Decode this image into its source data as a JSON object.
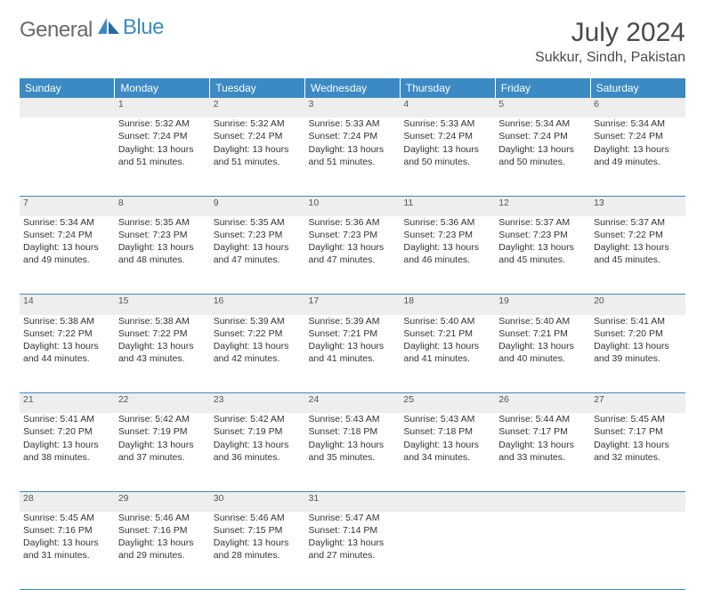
{
  "brand": {
    "part1": "General",
    "part2": "Blue"
  },
  "title": "July 2024",
  "location": "Sukkur, Sindh, Pakistan",
  "colors": {
    "header_bg": "#3b8ac4",
    "header_text": "#ffffff",
    "daynum_bg": "#eeeeee",
    "border": "#3b8ac4",
    "body_text": "#333333"
  },
  "day_headers": [
    "Sunday",
    "Monday",
    "Tuesday",
    "Wednesday",
    "Thursday",
    "Friday",
    "Saturday"
  ],
  "weeks": [
    {
      "nums": [
        "",
        "1",
        "2",
        "3",
        "4",
        "5",
        "6"
      ],
      "cells": [
        null,
        {
          "sunrise": "Sunrise: 5:32 AM",
          "sunset": "Sunset: 7:24 PM",
          "day1": "Daylight: 13 hours",
          "day2": "and 51 minutes."
        },
        {
          "sunrise": "Sunrise: 5:32 AM",
          "sunset": "Sunset: 7:24 PM",
          "day1": "Daylight: 13 hours",
          "day2": "and 51 minutes."
        },
        {
          "sunrise": "Sunrise: 5:33 AM",
          "sunset": "Sunset: 7:24 PM",
          "day1": "Daylight: 13 hours",
          "day2": "and 51 minutes."
        },
        {
          "sunrise": "Sunrise: 5:33 AM",
          "sunset": "Sunset: 7:24 PM",
          "day1": "Daylight: 13 hours",
          "day2": "and 50 minutes."
        },
        {
          "sunrise": "Sunrise: 5:34 AM",
          "sunset": "Sunset: 7:24 PM",
          "day1": "Daylight: 13 hours",
          "day2": "and 50 minutes."
        },
        {
          "sunrise": "Sunrise: 5:34 AM",
          "sunset": "Sunset: 7:24 PM",
          "day1": "Daylight: 13 hours",
          "day2": "and 49 minutes."
        }
      ]
    },
    {
      "nums": [
        "7",
        "8",
        "9",
        "10",
        "11",
        "12",
        "13"
      ],
      "cells": [
        {
          "sunrise": "Sunrise: 5:34 AM",
          "sunset": "Sunset: 7:24 PM",
          "day1": "Daylight: 13 hours",
          "day2": "and 49 minutes."
        },
        {
          "sunrise": "Sunrise: 5:35 AM",
          "sunset": "Sunset: 7:23 PM",
          "day1": "Daylight: 13 hours",
          "day2": "and 48 minutes."
        },
        {
          "sunrise": "Sunrise: 5:35 AM",
          "sunset": "Sunset: 7:23 PM",
          "day1": "Daylight: 13 hours",
          "day2": "and 47 minutes."
        },
        {
          "sunrise": "Sunrise: 5:36 AM",
          "sunset": "Sunset: 7:23 PM",
          "day1": "Daylight: 13 hours",
          "day2": "and 47 minutes."
        },
        {
          "sunrise": "Sunrise: 5:36 AM",
          "sunset": "Sunset: 7:23 PM",
          "day1": "Daylight: 13 hours",
          "day2": "and 46 minutes."
        },
        {
          "sunrise": "Sunrise: 5:37 AM",
          "sunset": "Sunset: 7:23 PM",
          "day1": "Daylight: 13 hours",
          "day2": "and 45 minutes."
        },
        {
          "sunrise": "Sunrise: 5:37 AM",
          "sunset": "Sunset: 7:22 PM",
          "day1": "Daylight: 13 hours",
          "day2": "and 45 minutes."
        }
      ]
    },
    {
      "nums": [
        "14",
        "15",
        "16",
        "17",
        "18",
        "19",
        "20"
      ],
      "cells": [
        {
          "sunrise": "Sunrise: 5:38 AM",
          "sunset": "Sunset: 7:22 PM",
          "day1": "Daylight: 13 hours",
          "day2": "and 44 minutes."
        },
        {
          "sunrise": "Sunrise: 5:38 AM",
          "sunset": "Sunset: 7:22 PM",
          "day1": "Daylight: 13 hours",
          "day2": "and 43 minutes."
        },
        {
          "sunrise": "Sunrise: 5:39 AM",
          "sunset": "Sunset: 7:22 PM",
          "day1": "Daylight: 13 hours",
          "day2": "and 42 minutes."
        },
        {
          "sunrise": "Sunrise: 5:39 AM",
          "sunset": "Sunset: 7:21 PM",
          "day1": "Daylight: 13 hours",
          "day2": "and 41 minutes."
        },
        {
          "sunrise": "Sunrise: 5:40 AM",
          "sunset": "Sunset: 7:21 PM",
          "day1": "Daylight: 13 hours",
          "day2": "and 41 minutes."
        },
        {
          "sunrise": "Sunrise: 5:40 AM",
          "sunset": "Sunset: 7:21 PM",
          "day1": "Daylight: 13 hours",
          "day2": "and 40 minutes."
        },
        {
          "sunrise": "Sunrise: 5:41 AM",
          "sunset": "Sunset: 7:20 PM",
          "day1": "Daylight: 13 hours",
          "day2": "and 39 minutes."
        }
      ]
    },
    {
      "nums": [
        "21",
        "22",
        "23",
        "24",
        "25",
        "26",
        "27"
      ],
      "cells": [
        {
          "sunrise": "Sunrise: 5:41 AM",
          "sunset": "Sunset: 7:20 PM",
          "day1": "Daylight: 13 hours",
          "day2": "and 38 minutes."
        },
        {
          "sunrise": "Sunrise: 5:42 AM",
          "sunset": "Sunset: 7:19 PM",
          "day1": "Daylight: 13 hours",
          "day2": "and 37 minutes."
        },
        {
          "sunrise": "Sunrise: 5:42 AM",
          "sunset": "Sunset: 7:19 PM",
          "day1": "Daylight: 13 hours",
          "day2": "and 36 minutes."
        },
        {
          "sunrise": "Sunrise: 5:43 AM",
          "sunset": "Sunset: 7:18 PM",
          "day1": "Daylight: 13 hours",
          "day2": "and 35 minutes."
        },
        {
          "sunrise": "Sunrise: 5:43 AM",
          "sunset": "Sunset: 7:18 PM",
          "day1": "Daylight: 13 hours",
          "day2": "and 34 minutes."
        },
        {
          "sunrise": "Sunrise: 5:44 AM",
          "sunset": "Sunset: 7:17 PM",
          "day1": "Daylight: 13 hours",
          "day2": "and 33 minutes."
        },
        {
          "sunrise": "Sunrise: 5:45 AM",
          "sunset": "Sunset: 7:17 PM",
          "day1": "Daylight: 13 hours",
          "day2": "and 32 minutes."
        }
      ]
    },
    {
      "nums": [
        "28",
        "29",
        "30",
        "31",
        "",
        "",
        ""
      ],
      "cells": [
        {
          "sunrise": "Sunrise: 5:45 AM",
          "sunset": "Sunset: 7:16 PM",
          "day1": "Daylight: 13 hours",
          "day2": "and 31 minutes."
        },
        {
          "sunrise": "Sunrise: 5:46 AM",
          "sunset": "Sunset: 7:16 PM",
          "day1": "Daylight: 13 hours",
          "day2": "and 29 minutes."
        },
        {
          "sunrise": "Sunrise: 5:46 AM",
          "sunset": "Sunset: 7:15 PM",
          "day1": "Daylight: 13 hours",
          "day2": "and 28 minutes."
        },
        {
          "sunrise": "Sunrise: 5:47 AM",
          "sunset": "Sunset: 7:14 PM",
          "day1": "Daylight: 13 hours",
          "day2": "and 27 minutes."
        },
        null,
        null,
        null
      ]
    }
  ]
}
